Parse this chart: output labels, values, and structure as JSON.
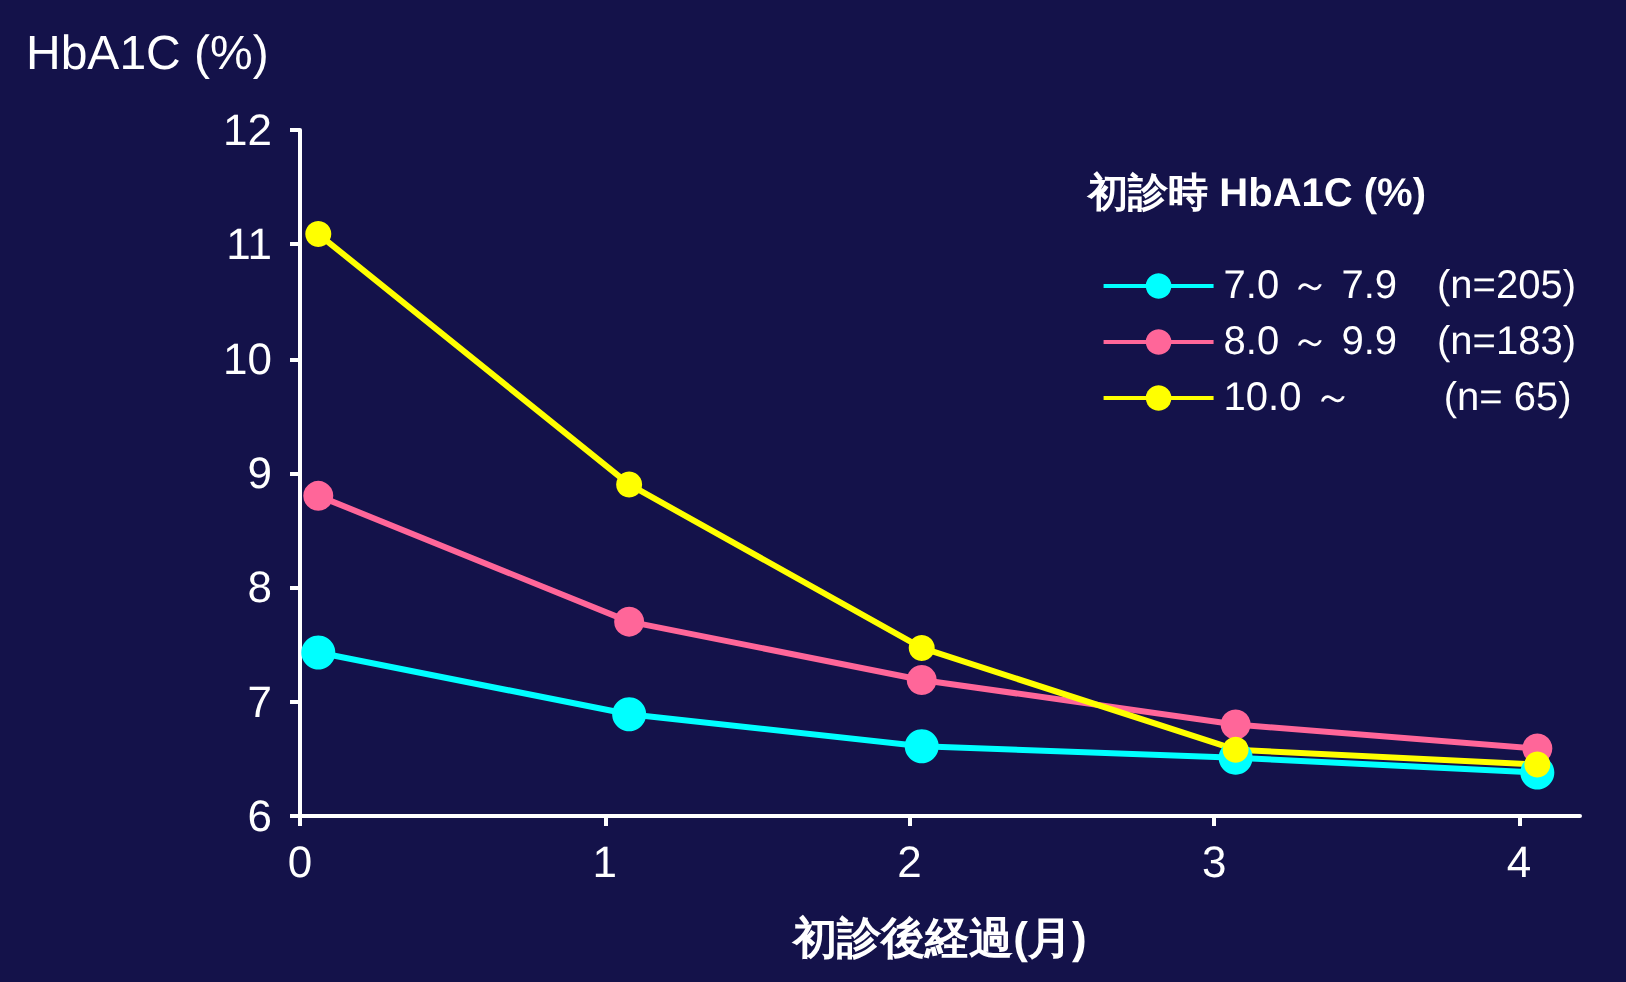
{
  "chart_data": {
    "type": "line",
    "ylabel": "HbA1C (%)",
    "xlabel": "初診後経過(月)",
    "legend_title": "初診時 HbA1C (%)",
    "x": [
      0.06,
      1.08,
      2.04,
      3.07,
      4.06
    ],
    "series": [
      {
        "name": "7.0 ～ 7.9　(n=205)",
        "color": "#00ffff",
        "values": [
          7.43,
          6.89,
          6.61,
          6.51,
          6.38
        ]
      },
      {
        "name": "8.0 ～ 9.9　(n=183)",
        "color": "#ff6699",
        "values": [
          8.8,
          7.7,
          7.19,
          6.8,
          6.59
        ]
      },
      {
        "name": "10.0 ～　　 (n= 65)",
        "color": "#ffff00",
        "values": [
          11.09,
          8.9,
          7.47,
          6.58,
          6.45
        ]
      }
    ],
    "xlim": [
      0,
      4.2
    ],
    "xticks": [
      0,
      1,
      2,
      3,
      4
    ],
    "ylim": [
      6,
      12
    ],
    "yticks": [
      6,
      7,
      8,
      9,
      10,
      11,
      12
    ],
    "grid": false,
    "legend": "top right",
    "marker": "circle",
    "line_style": "solid"
  }
}
